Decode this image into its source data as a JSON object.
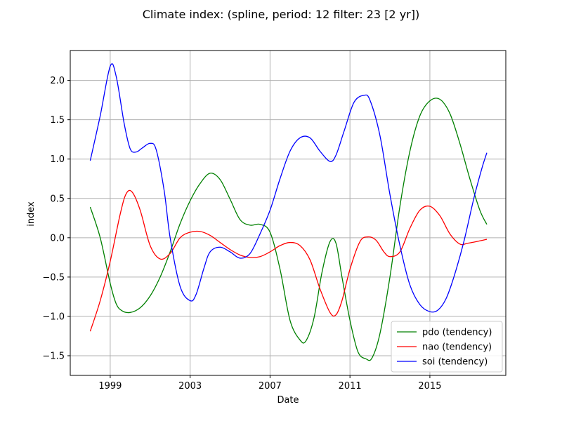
{
  "chart_data": {
    "type": "line",
    "title": "Climate index: (spline, period: 12 filter: 23 [2 yr])",
    "xlabel": "Date",
    "ylabel": "index",
    "xlim": [
      1997.0,
      2018.8
    ],
    "ylim": [
      -1.75,
      2.38
    ],
    "xticks": [
      1999,
      2003,
      2007,
      2011,
      2015
    ],
    "xtick_labels": [
      "1999",
      "2003",
      "2007",
      "2011",
      "2015"
    ],
    "yticks": [
      -1.5,
      -1.0,
      -0.5,
      0.0,
      0.5,
      1.0,
      1.5,
      2.0
    ],
    "ytick_labels": [
      "−1.5",
      "−1.0",
      "−0.5",
      "0.0",
      "0.5",
      "1.0",
      "1.5",
      "2.0"
    ],
    "grid": true,
    "legend_position": "lower-right",
    "series": [
      {
        "name": "pdo (tendency)",
        "color": "#008000",
        "x": [
          1998.0,
          1998.5,
          1999.0,
          1999.3,
          1999.6,
          2000.0,
          2000.5,
          2001.0,
          2001.5,
          2002.0,
          2002.5,
          2003.0,
          2003.5,
          2004.0,
          2004.5,
          2005.0,
          2005.5,
          2006.0,
          2006.5,
          2007.0,
          2007.5,
          2008.0,
          2008.5,
          2008.8,
          2009.2,
          2009.6,
          2010.0,
          2010.3,
          2010.6,
          2011.0,
          2011.4,
          2011.8,
          2012.1,
          2012.5,
          2013.0,
          2013.5,
          2014.0,
          2014.5,
          2015.0,
          2015.5,
          2016.0,
          2016.5,
          2017.0,
          2017.5,
          2017.85
        ],
        "values": [
          0.39,
          0.0,
          -0.58,
          -0.84,
          -0.93,
          -0.95,
          -0.89,
          -0.74,
          -0.5,
          -0.18,
          0.18,
          0.47,
          0.69,
          0.82,
          0.74,
          0.49,
          0.23,
          0.16,
          0.17,
          0.07,
          -0.4,
          -1.05,
          -1.3,
          -1.31,
          -1.02,
          -0.44,
          -0.05,
          -0.07,
          -0.5,
          -1.05,
          -1.45,
          -1.54,
          -1.53,
          -1.22,
          -0.5,
          0.4,
          1.1,
          1.55,
          1.74,
          1.76,
          1.58,
          1.2,
          0.75,
          0.35,
          0.17
        ]
      },
      {
        "name": "nao (tendency)",
        "color": "#ff0000",
        "x": [
          1998.0,
          1998.5,
          1999.0,
          1999.5,
          1999.8,
          2000.1,
          2000.5,
          2001.0,
          2001.5,
          2002.0,
          2002.5,
          2003.0,
          2003.5,
          2004.0,
          2004.5,
          2005.0,
          2005.5,
          2006.0,
          2006.5,
          2007.0,
          2007.5,
          2008.0,
          2008.5,
          2009.0,
          2009.5,
          2010.0,
          2010.3,
          2010.6,
          2011.0,
          2011.5,
          2011.9,
          2012.3,
          2012.7,
          2013.0,
          2013.5,
          2014.0,
          2014.5,
          2015.0,
          2015.5,
          2016.0,
          2016.5,
          2016.9,
          2017.5,
          2017.85
        ],
        "values": [
          -1.19,
          -0.8,
          -0.3,
          0.3,
          0.56,
          0.58,
          0.35,
          -0.1,
          -0.27,
          -0.2,
          0.0,
          0.07,
          0.08,
          0.03,
          -0.06,
          -0.15,
          -0.22,
          -0.25,
          -0.24,
          -0.18,
          -0.1,
          -0.06,
          -0.1,
          -0.28,
          -0.65,
          -0.95,
          -0.98,
          -0.8,
          -0.4,
          -0.05,
          0.01,
          -0.03,
          -0.18,
          -0.24,
          -0.18,
          0.12,
          0.35,
          0.4,
          0.28,
          0.05,
          -0.08,
          -0.07,
          -0.04,
          -0.02
        ]
      },
      {
        "name": "soi (tendency)",
        "color": "#0000ff",
        "x": [
          1998.0,
          1998.5,
          1999.0,
          1999.3,
          1999.7,
          2000.0,
          2000.3,
          2000.6,
          2001.0,
          2001.3,
          2001.7,
          2002.0,
          2002.5,
          2003.0,
          2003.3,
          2003.7,
          2004.0,
          2004.5,
          2005.0,
          2005.5,
          2006.0,
          2006.5,
          2007.0,
          2007.5,
          2008.0,
          2008.5,
          2009.0,
          2009.5,
          2010.0,
          2010.3,
          2010.7,
          2011.2,
          2011.7,
          2012.0,
          2012.5,
          2013.0,
          2013.5,
          2014.0,
          2014.5,
          2015.0,
          2015.4,
          2015.8,
          2016.2,
          2016.7,
          2017.2,
          2017.6,
          2017.85
        ],
        "values": [
          0.98,
          1.55,
          2.18,
          2.05,
          1.45,
          1.13,
          1.09,
          1.14,
          1.2,
          1.12,
          0.6,
          0.0,
          -0.62,
          -0.8,
          -0.72,
          -0.38,
          -0.18,
          -0.12,
          -0.18,
          -0.26,
          -0.2,
          0.05,
          0.35,
          0.75,
          1.1,
          1.27,
          1.27,
          1.1,
          0.97,
          1.05,
          1.35,
          1.72,
          1.81,
          1.75,
          1.3,
          0.55,
          -0.1,
          -0.6,
          -0.85,
          -0.94,
          -0.92,
          -0.78,
          -0.5,
          -0.05,
          0.5,
          0.88,
          1.08
        ]
      }
    ]
  }
}
